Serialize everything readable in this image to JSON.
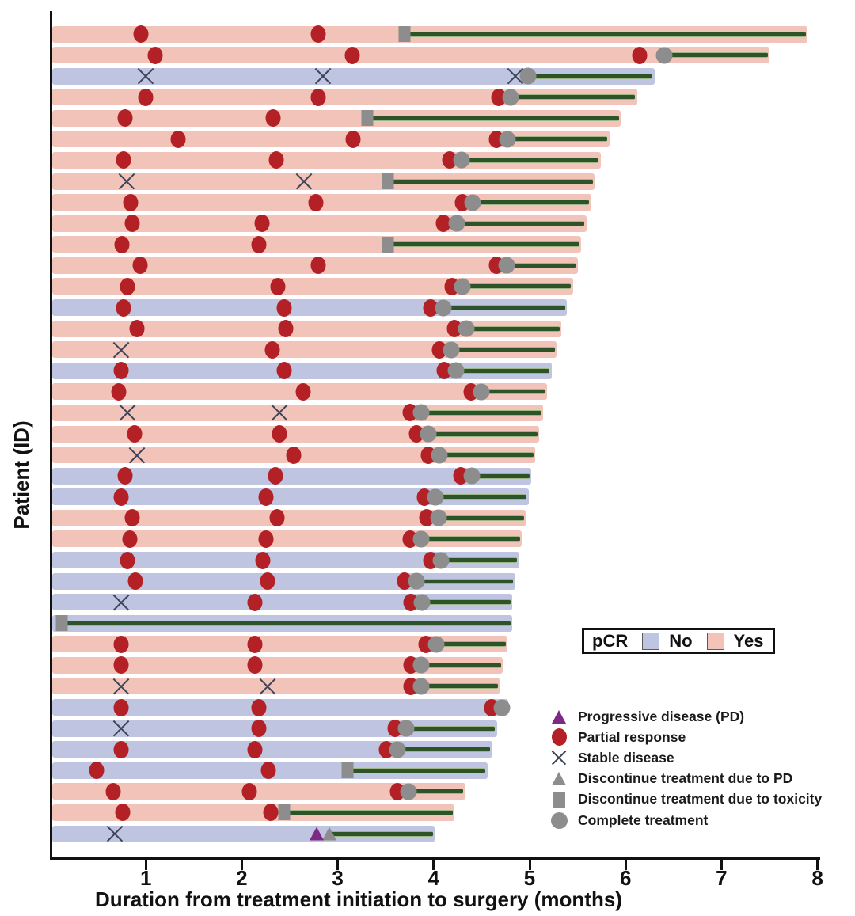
{
  "axes": {
    "x_label": "Duration from treatment initiation to surgery (months)",
    "y_label": "Patient (ID)",
    "x_ticks": [
      "1",
      "2",
      "3",
      "4",
      "5",
      "6",
      "7",
      "8"
    ],
    "x_range": [
      0,
      8
    ]
  },
  "pcr_legend": {
    "title": "pCR",
    "items": [
      {
        "label": "No",
        "color": "#bfc5e1"
      },
      {
        "label": "Yes",
        "color": "#f2c3b8"
      }
    ]
  },
  "marker_legend": [
    {
      "icon": "triangle-purple-icon",
      "type": "pd",
      "label": "Progressive disease (PD)"
    },
    {
      "icon": "circle-red-icon",
      "type": "pr",
      "label": "Partial response"
    },
    {
      "icon": "x-mark-icon",
      "type": "sd",
      "label": "Stable disease"
    },
    {
      "icon": "triangle-gray-icon",
      "type": "dpd",
      "label": "Discontinue treatment due to PD"
    },
    {
      "icon": "square-gray-icon",
      "type": "tox",
      "label": "Discontinue treatment due to toxicity"
    },
    {
      "icon": "circle-gray-icon",
      "type": "comp",
      "label": "Complete treatment"
    }
  ],
  "colors": {
    "pcr_no": "#bfc5e1",
    "pcr_yes": "#f2c3b8",
    "partial_response": "#b32025",
    "progressive_disease": "#7c2a86",
    "gray_marker": "#8d8d8d",
    "stable_disease_x": "#3d4357",
    "treatment_line": "#2d5329",
    "axis": "#111111"
  },
  "chart_data": {
    "type": "bar",
    "subtype": "swimmer-plot",
    "orientation": "horizontal",
    "title": "",
    "xlabel": "Duration from treatment initiation to surgery (months)",
    "ylabel": "Patient (ID)",
    "xlim": [
      0,
      8
    ],
    "x_ticks": [
      1,
      2,
      3,
      4,
      5,
      6,
      7,
      8
    ],
    "grid": false,
    "bar_color_by": "pCR",
    "pcr_colors": {
      "No": "#bfc5e1",
      "Yes": "#f2c3b8"
    },
    "marker_meaning": {
      "pd": "Progressive disease (PD)",
      "pr": "Partial response",
      "sd": "Stable disease",
      "dpd": "Discontinue treatment due to PD",
      "tox": "Discontinue treatment due to toxicity",
      "comp": "Complete treatment"
    },
    "note": "Each row is one patient; bar length = months from treatment initiation to surgery; dark green line runs from treatment-end marker (tox/dpd/comp) to surgery.",
    "patients": [
      {
        "pcr": "Yes",
        "end": 7.9,
        "markers": [
          [
            "pr",
            0.95
          ],
          [
            "pr",
            2.8
          ],
          [
            "tox",
            3.7
          ]
        ]
      },
      {
        "pcr": "Yes",
        "end": 7.5,
        "markers": [
          [
            "pr",
            1.1
          ],
          [
            "pr",
            3.15
          ],
          [
            "pr",
            6.15
          ],
          [
            "comp",
            6.4
          ]
        ]
      },
      {
        "pcr": "No",
        "end": 6.3,
        "markers": [
          [
            "sd",
            1.0
          ],
          [
            "sd",
            2.85
          ],
          [
            "sd",
            4.85
          ],
          [
            "comp",
            4.98
          ]
        ]
      },
      {
        "pcr": "Yes",
        "end": 6.12,
        "markers": [
          [
            "pr",
            1.0
          ],
          [
            "pr",
            2.8
          ],
          [
            "pr",
            4.68
          ],
          [
            "comp",
            4.8
          ]
        ]
      },
      {
        "pcr": "Yes",
        "end": 5.95,
        "markers": [
          [
            "pr",
            0.78
          ],
          [
            "pr",
            2.33
          ],
          [
            "tox",
            3.31
          ]
        ]
      },
      {
        "pcr": "Yes",
        "end": 5.83,
        "markers": [
          [
            "pr",
            1.34
          ],
          [
            "pr",
            3.16
          ],
          [
            "pr",
            4.65
          ],
          [
            "comp",
            4.77
          ]
        ]
      },
      {
        "pcr": "Yes",
        "end": 5.74,
        "markers": [
          [
            "pr",
            0.77
          ],
          [
            "pr",
            2.36
          ],
          [
            "pr",
            4.17
          ],
          [
            "comp",
            4.29
          ]
        ]
      },
      {
        "pcr": "Yes",
        "end": 5.68,
        "markers": [
          [
            "sd",
            0.8
          ],
          [
            "sd",
            2.65
          ],
          [
            "tox",
            3.52
          ]
        ]
      },
      {
        "pcr": "Yes",
        "end": 5.64,
        "markers": [
          [
            "pr",
            0.84
          ],
          [
            "pr",
            2.77
          ],
          [
            "pr",
            4.3
          ],
          [
            "comp",
            4.41
          ]
        ]
      },
      {
        "pcr": "Yes",
        "end": 5.59,
        "markers": [
          [
            "pr",
            0.86
          ],
          [
            "pr",
            2.21
          ],
          [
            "pr",
            4.1
          ],
          [
            "comp",
            4.24
          ]
        ]
      },
      {
        "pcr": "Yes",
        "end": 5.54,
        "markers": [
          [
            "pr",
            0.75
          ],
          [
            "pr",
            2.18
          ],
          [
            "tox",
            3.52
          ]
        ]
      },
      {
        "pcr": "Yes",
        "end": 5.5,
        "markers": [
          [
            "pr",
            0.94
          ],
          [
            "pr",
            2.8
          ],
          [
            "pr",
            4.65
          ],
          [
            "comp",
            4.76
          ]
        ]
      },
      {
        "pcr": "Yes",
        "end": 5.45,
        "markers": [
          [
            "pr",
            0.81
          ],
          [
            "pr",
            2.38
          ],
          [
            "pr",
            4.19
          ],
          [
            "comp",
            4.3
          ]
        ]
      },
      {
        "pcr": "No",
        "end": 5.39,
        "markers": [
          [
            "pr",
            0.77
          ],
          [
            "pr",
            2.44
          ],
          [
            "pr",
            3.97
          ],
          [
            "comp",
            4.1
          ]
        ]
      },
      {
        "pcr": "Yes",
        "end": 5.33,
        "markers": [
          [
            "pr",
            0.91
          ],
          [
            "pr",
            2.46
          ],
          [
            "pr",
            4.22
          ],
          [
            "comp",
            4.34
          ]
        ]
      },
      {
        "pcr": "Yes",
        "end": 5.28,
        "markers": [
          [
            "sd",
            0.74
          ],
          [
            "pr",
            2.32
          ],
          [
            "pr",
            4.06
          ],
          [
            "comp",
            4.18
          ]
        ]
      },
      {
        "pcr": "No",
        "end": 5.23,
        "markers": [
          [
            "pr",
            0.74
          ],
          [
            "pr",
            2.44
          ],
          [
            "pr",
            4.11
          ],
          [
            "comp",
            4.23
          ]
        ]
      },
      {
        "pcr": "Yes",
        "end": 5.18,
        "markers": [
          [
            "pr",
            0.72
          ],
          [
            "pr",
            2.64
          ],
          [
            "pr",
            4.39
          ],
          [
            "comp",
            4.5
          ]
        ]
      },
      {
        "pcr": "Yes",
        "end": 5.14,
        "markers": [
          [
            "sd",
            0.81
          ],
          [
            "sd",
            2.39
          ],
          [
            "pr",
            3.75
          ],
          [
            "comp",
            3.87
          ]
        ]
      },
      {
        "pcr": "Yes",
        "end": 5.1,
        "markers": [
          [
            "pr",
            0.88
          ],
          [
            "pr",
            2.39
          ],
          [
            "pr",
            3.82
          ],
          [
            "comp",
            3.94
          ]
        ]
      },
      {
        "pcr": "Yes",
        "end": 5.06,
        "markers": [
          [
            "sd",
            0.91
          ],
          [
            "pr",
            2.54
          ],
          [
            "pr",
            3.94
          ],
          [
            "comp",
            4.06
          ]
        ]
      },
      {
        "pcr": "No",
        "end": 5.02,
        "markers": [
          [
            "pr",
            0.78
          ],
          [
            "pr",
            2.35
          ],
          [
            "pr",
            4.28
          ],
          [
            "comp",
            4.4
          ]
        ]
      },
      {
        "pcr": "No",
        "end": 4.99,
        "markers": [
          [
            "pr",
            0.74
          ],
          [
            "pr",
            2.25
          ],
          [
            "pr",
            3.9
          ],
          [
            "comp",
            4.02
          ]
        ]
      },
      {
        "pcr": "Yes",
        "end": 4.96,
        "markers": [
          [
            "pr",
            0.86
          ],
          [
            "pr",
            2.37
          ],
          [
            "pr",
            3.93
          ],
          [
            "comp",
            4.05
          ]
        ]
      },
      {
        "pcr": "Yes",
        "end": 4.92,
        "markers": [
          [
            "pr",
            0.83
          ],
          [
            "pr",
            2.25
          ],
          [
            "pr",
            3.75
          ],
          [
            "comp",
            3.87
          ]
        ]
      },
      {
        "pcr": "No",
        "end": 4.89,
        "markers": [
          [
            "pr",
            0.81
          ],
          [
            "pr",
            2.22
          ],
          [
            "pr",
            3.97
          ],
          [
            "comp",
            4.08
          ]
        ]
      },
      {
        "pcr": "No",
        "end": 4.85,
        "markers": [
          [
            "pr",
            0.89
          ],
          [
            "pr",
            2.27
          ],
          [
            "pr",
            3.7
          ],
          [
            "comp",
            3.82
          ]
        ]
      },
      {
        "pcr": "No",
        "end": 4.82,
        "markers": [
          [
            "sd",
            0.74
          ],
          [
            "pr",
            2.14
          ],
          [
            "pr",
            3.76
          ],
          [
            "comp",
            3.88
          ]
        ]
      },
      {
        "pcr": "No",
        "end": 4.82,
        "markers": [
          [
            "tox",
            0.12
          ]
        ]
      },
      {
        "pcr": "Yes",
        "end": 4.77,
        "markers": [
          [
            "pr",
            0.74
          ],
          [
            "pr",
            2.14
          ],
          [
            "pr",
            3.92
          ],
          [
            "comp",
            4.03
          ]
        ]
      },
      {
        "pcr": "Yes",
        "end": 4.72,
        "markers": [
          [
            "pr",
            0.74
          ],
          [
            "pr",
            2.14
          ],
          [
            "pr",
            3.76
          ],
          [
            "comp",
            3.87
          ]
        ]
      },
      {
        "pcr": "Yes",
        "end": 4.69,
        "markers": [
          [
            "sd",
            0.74
          ],
          [
            "sd",
            2.27
          ],
          [
            "pr",
            3.76
          ],
          [
            "comp",
            3.87
          ]
        ]
      },
      {
        "pcr": "No",
        "end": 4.78,
        "markers": [
          [
            "pr",
            0.74
          ],
          [
            "pr",
            2.18
          ],
          [
            "pr",
            4.6
          ],
          [
            "comp",
            4.71
          ]
        ]
      },
      {
        "pcr": "No",
        "end": 4.66,
        "markers": [
          [
            "sd",
            0.74
          ],
          [
            "pr",
            2.18
          ],
          [
            "pr",
            3.6
          ],
          [
            "comp",
            3.71
          ]
        ]
      },
      {
        "pcr": "No",
        "end": 4.61,
        "markers": [
          [
            "pr",
            0.74
          ],
          [
            "pr",
            2.14
          ],
          [
            "pr",
            3.51
          ],
          [
            "comp",
            3.62
          ]
        ]
      },
      {
        "pcr": "No",
        "end": 4.56,
        "markers": [
          [
            "pr",
            0.49
          ],
          [
            "pr",
            2.28
          ],
          [
            "tox",
            3.1
          ]
        ]
      },
      {
        "pcr": "Yes",
        "end": 4.33,
        "markers": [
          [
            "pr",
            0.66
          ],
          [
            "pr",
            2.08
          ],
          [
            "pr",
            3.62
          ],
          [
            "comp",
            3.74
          ]
        ]
      },
      {
        "pcr": "Yes",
        "end": 4.22,
        "markers": [
          [
            "pr",
            0.76
          ],
          [
            "pr",
            2.3
          ],
          [
            "tox",
            2.44
          ]
        ]
      },
      {
        "pcr": "No",
        "end": 4.01,
        "markers": [
          [
            "sd",
            0.68
          ],
          [
            "dpd",
            2.91
          ],
          [
            "pd",
            2.78
          ]
        ]
      }
    ]
  }
}
